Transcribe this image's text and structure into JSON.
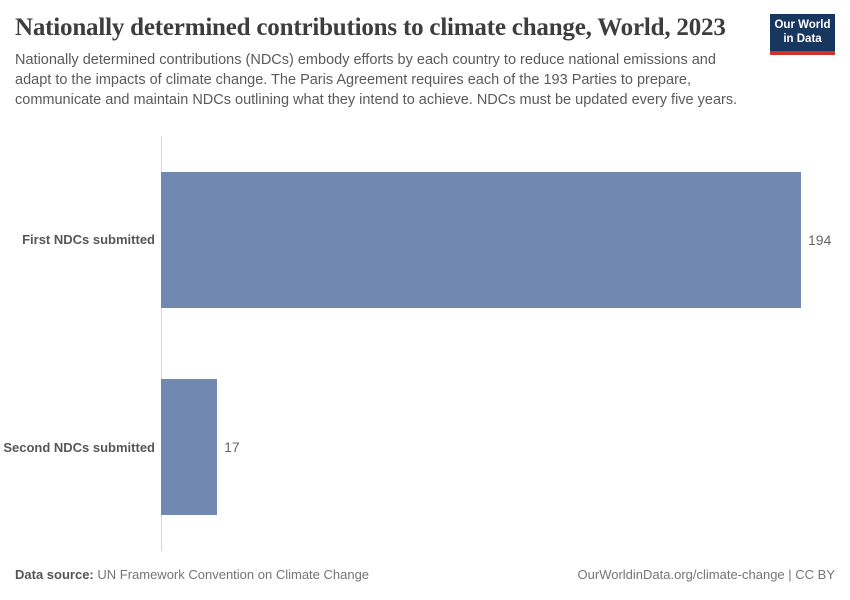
{
  "header": {
    "title": "Nationally determined contributions to climate change, World, 2023",
    "subtitle": "Nationally determined contributions (NDCs) embody efforts by each country to reduce national emissions and adapt to the impacts of climate change. The Paris Agreement requires each of the 193 Parties to prepare, communicate and maintain NDCs outlining what they intend to achieve. NDCs must be updated every five years."
  },
  "logo": {
    "line1": "Our World",
    "line2": "in Data",
    "bg_color": "#18375f",
    "accent_color": "#d0332b"
  },
  "chart_data": {
    "type": "bar",
    "orientation": "horizontal",
    "title": "Nationally determined contributions to climate change, World, 2023",
    "categories": [
      "First NDCs submitted",
      "Second NDCs submitted"
    ],
    "values": [
      194,
      17
    ],
    "value_labels": [
      "194",
      "17"
    ],
    "xlabel": "",
    "ylabel": "",
    "xlim": [
      0,
      194
    ],
    "grid": false,
    "legend": "none",
    "bar_color": "#7189b1",
    "axis_line_color": "#d6d6d6"
  },
  "footer": {
    "source_label": "Data source:",
    "source_text": " UN Framework Convention on Climate Change",
    "credit": "OurWorldinData.org/climate-change | CC BY"
  }
}
